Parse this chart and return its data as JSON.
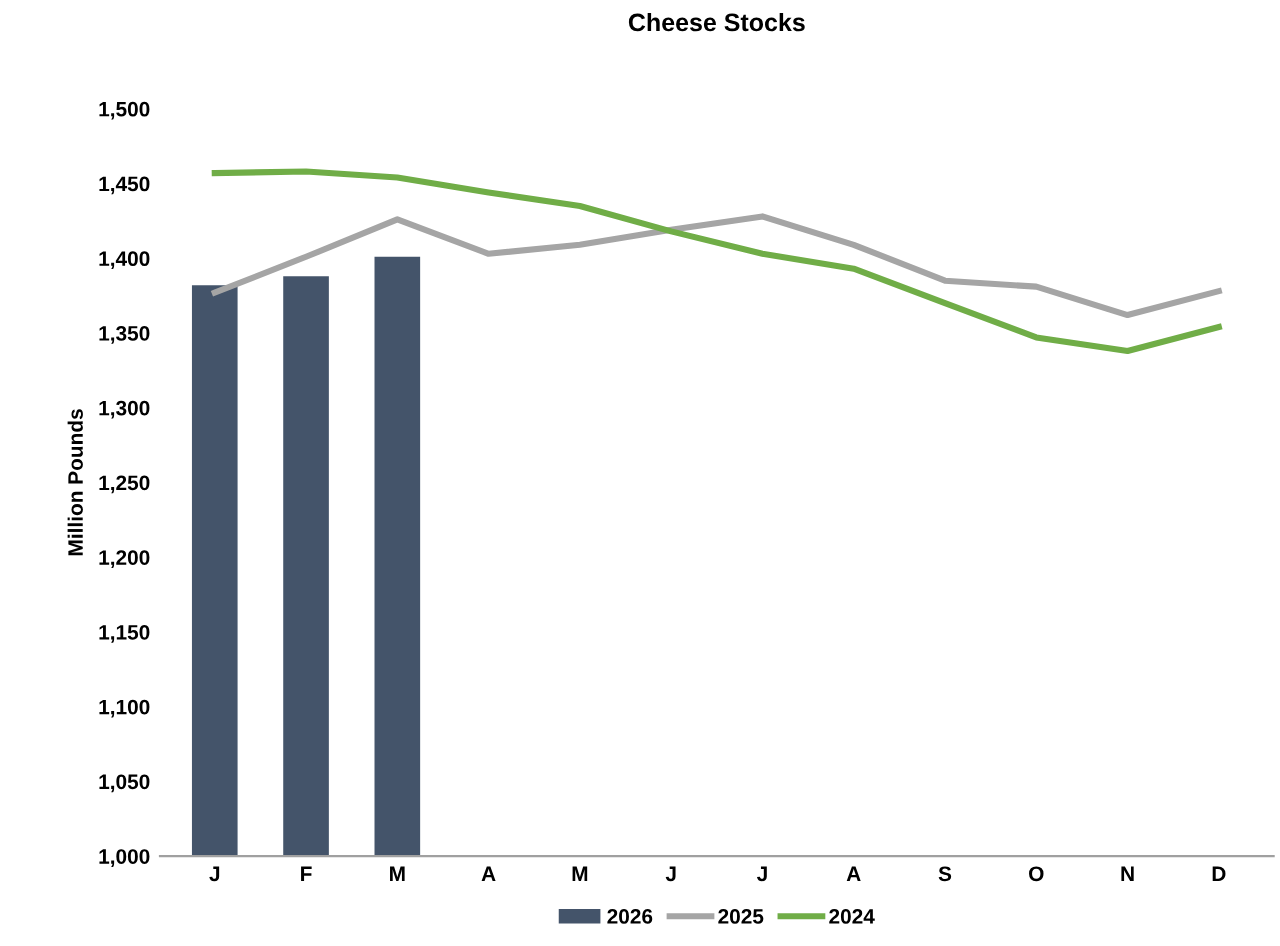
{
  "chart_data": {
    "type": "bar",
    "title": "Cheese Stocks",
    "ylabel": "Million Pounds",
    "categories": [
      "J",
      "F",
      "M",
      "A",
      "M",
      "J",
      "J",
      "A",
      "S",
      "O",
      "N",
      "D"
    ],
    "series": [
      {
        "name": "2026",
        "color": "#44546a",
        "values": [
          1382,
          1388,
          1401,
          null,
          null,
          null,
          null,
          null,
          null,
          null,
          null,
          null
        ]
      },
      {
        "name": "2025",
        "type": "line",
        "color": "#a5a5a5",
        "values": [
          1377,
          1401,
          1426,
          1403,
          1409,
          1419,
          1428,
          1409,
          1385,
          1381,
          1362,
          1378
        ]
      },
      {
        "name": "2024",
        "type": "line",
        "color": "#70ad47",
        "values": [
          1457,
          1458,
          1454,
          1444,
          1435,
          1418,
          1403,
          1393,
          1370,
          1347,
          1338,
          1354
        ]
      }
    ],
    "ylim": [
      1000,
      1500
    ],
    "yticks": [
      {
        "value": 1000,
        "label": "1,000"
      },
      {
        "value": 1050,
        "label": "1,050"
      },
      {
        "value": 1100,
        "label": "1,100"
      },
      {
        "value": 1150,
        "label": "1,150"
      },
      {
        "value": 1200,
        "label": "1,200"
      },
      {
        "value": 1250,
        "label": "1,250"
      },
      {
        "value": 1300,
        "label": "1,300"
      },
      {
        "value": 1350,
        "label": "1,350"
      },
      {
        "value": 1400,
        "label": "1,400"
      },
      {
        "value": 1450,
        "label": "1,450"
      },
      {
        "value": 1500,
        "label": "1,500"
      }
    ],
    "grid": false,
    "legend": "bottom",
    "marker": "none",
    "line_style": "solid"
  }
}
